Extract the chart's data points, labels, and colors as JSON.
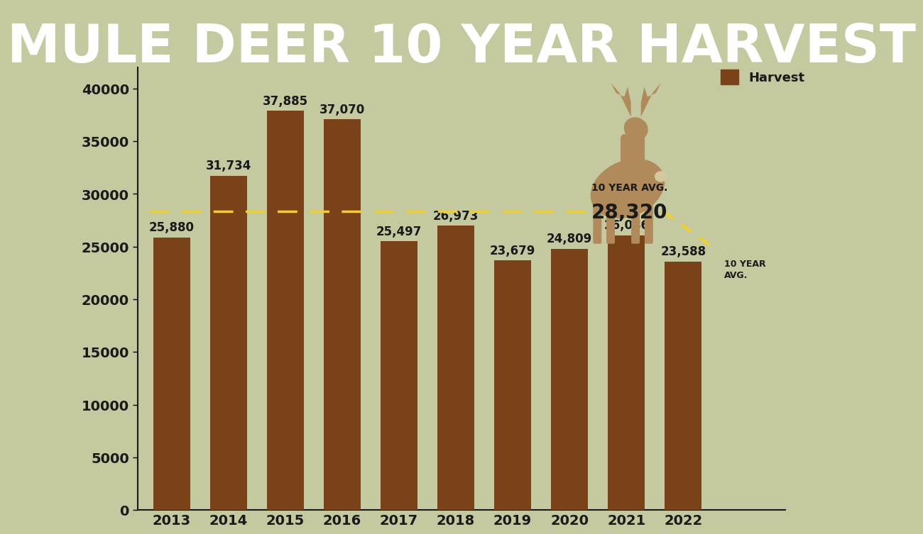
{
  "title": "MULE DEER 10 YEAR HARVEST",
  "title_bg_color": "#1e4d1e",
  "title_text_color": "#ffffff",
  "bg_color": "#c5c9a0",
  "bar_color": "#7a4218",
  "years": [
    2013,
    2014,
    2015,
    2016,
    2017,
    2018,
    2019,
    2020,
    2021,
    2022
  ],
  "values": [
    25880,
    31734,
    37885,
    37070,
    25497,
    26973,
    23679,
    24809,
    26086,
    23588
  ],
  "ten_year_avg": 28320,
  "avg_line_color": "#f5d020",
  "value_label_color": "#1a1a1a",
  "legend_label": "Harvest",
  "avg_label": "10 YEAR\nAVG.",
  "ylim": [
    0,
    42000
  ],
  "yticks": [
    0,
    5000,
    10000,
    15000,
    20000,
    25000,
    30000,
    35000,
    40000
  ],
  "deer_color": "#b08a5a",
  "title_fontsize": 54,
  "bar_label_fontsize": 12,
  "tick_fontsize": 14
}
